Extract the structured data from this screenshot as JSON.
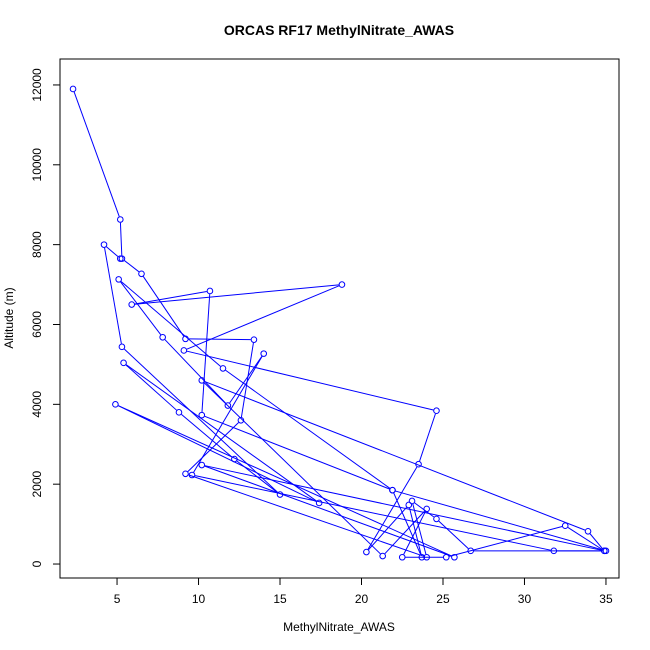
{
  "chart_data": {
    "type": "line",
    "title": "ORCAS RF17 MethylNitrate_AWAS",
    "xlabel": "MethylNitrate_AWAS",
    "ylabel": "Altitude (m)",
    "xlim": [
      1.5,
      35.8
    ],
    "ylim": [
      -350,
      12650
    ],
    "xticks": [
      5,
      10,
      15,
      20,
      25,
      30,
      35
    ],
    "yticks": [
      0,
      2000,
      4000,
      6000,
      8000,
      10000,
      12000
    ],
    "grid": false,
    "legend": "none",
    "series": [
      {
        "color": "#0000ff",
        "marker": "open-circle",
        "points": [
          [
            2.3,
            11900
          ],
          [
            5.2,
            8630
          ],
          [
            5.3,
            7650
          ],
          [
            6.5,
            7270
          ],
          [
            9.2,
            5640
          ],
          [
            13.4,
            5620
          ],
          [
            12.6,
            3600
          ],
          [
            9.2,
            2260
          ],
          [
            24.0,
            170
          ],
          [
            23.1,
            1580
          ],
          [
            24.6,
            1130
          ],
          [
            26.7,
            330
          ],
          [
            35.0,
            330
          ],
          [
            21.9,
            1850
          ],
          [
            10.2,
            3730
          ],
          [
            10.7,
            6840
          ],
          [
            5.9,
            6500
          ],
          [
            18.8,
            7000
          ],
          [
            9.1,
            5350
          ],
          [
            24.6,
            3840
          ],
          [
            23.5,
            2500
          ],
          [
            20.3,
            300
          ],
          [
            22.9,
            1480
          ],
          [
            23.7,
            170
          ],
          [
            21.9,
            1850
          ],
          [
            11.5,
            4900
          ],
          [
            5.1,
            7130
          ],
          [
            7.8,
            5680
          ],
          [
            11.8,
            3970
          ],
          [
            14.0,
            5270
          ],
          [
            9.6,
            2230
          ],
          [
            31.8,
            330
          ],
          [
            34.9,
            330
          ],
          [
            32.5,
            960
          ],
          [
            25.2,
            170
          ],
          [
            22.5,
            170
          ],
          [
            24.0,
            1380
          ],
          [
            21.3,
            200
          ],
          [
            10.2,
            4600
          ],
          [
            33.9,
            820
          ],
          [
            34.9,
            330
          ],
          [
            10.2,
            2480
          ],
          [
            25.7,
            170
          ],
          [
            4.9,
            4000
          ],
          [
            17.4,
            1530
          ],
          [
            5.4,
            5040
          ],
          [
            8.8,
            3800
          ],
          [
            12.2,
            2630
          ],
          [
            15.0,
            1740
          ],
          [
            5.3,
            5440
          ],
          [
            4.2,
            8000
          ],
          [
            5.2,
            7650
          ]
        ]
      }
    ]
  }
}
